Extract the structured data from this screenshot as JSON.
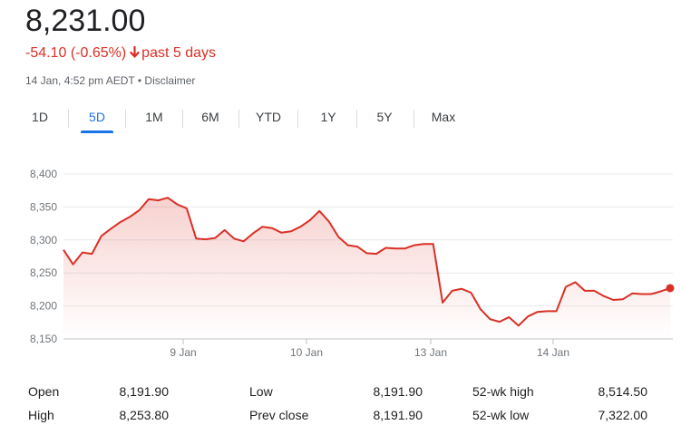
{
  "header": {
    "price": "8,231.00",
    "change": "-54.10 (-0.65%)",
    "period": "past 5 days",
    "timestamp": "14 Jan, 4:52 pm AEDT",
    "separator": "•",
    "disclaimer": "Disclaimer",
    "down_color": "#d93025"
  },
  "tabs": [
    {
      "label": "1D",
      "active": false
    },
    {
      "label": "5D",
      "active": true
    },
    {
      "label": "1M",
      "active": false
    },
    {
      "label": "6M",
      "active": false
    },
    {
      "label": "YTD",
      "active": false
    },
    {
      "label": "1Y",
      "active": false
    },
    {
      "label": "5Y",
      "active": false
    },
    {
      "label": "Max",
      "active": false
    }
  ],
  "chart_data": {
    "type": "area",
    "title": "",
    "xlabel": "",
    "ylabel": "",
    "ylim": [
      8150,
      8400
    ],
    "yticks": [
      8400,
      8350,
      8300,
      8250,
      8200,
      8150
    ],
    "ytick_labels": [
      "8,400",
      "8,350",
      "8,300",
      "8,250",
      "8,200",
      "8,150"
    ],
    "xtick_labels": [
      "9 Jan",
      "10 Jan",
      "13 Jan",
      "14 Jan"
    ],
    "line_color": "#d93025",
    "grid": true,
    "series": [
      {
        "values": [
          8285,
          8263,
          8281,
          8279,
          8306,
          8317,
          8327,
          8335,
          8345,
          8362,
          8360,
          8364,
          8354,
          8348,
          8302,
          8301,
          8303,
          8315,
          8302,
          8298,
          8310,
          8320,
          8318,
          8311,
          8313,
          8320,
          8330,
          8344,
          8328,
          8305,
          8292,
          8290,
          8280,
          8279,
          8288,
          8287,
          8287,
          8292,
          8294,
          8294,
          8205,
          8223,
          8226,
          8220,
          8195,
          8180,
          8176,
          8183,
          8170,
          8184,
          8191,
          8192,
          8192,
          8229,
          8236,
          8223,
          8223,
          8215,
          8209,
          8210,
          8219,
          8218,
          8218,
          8222,
          8227
        ]
      }
    ]
  },
  "stats": [
    {
      "label": "Open",
      "value": "8,191.90"
    },
    {
      "label": "High",
      "value": "8,253.80"
    },
    {
      "label": "Low",
      "value": "8,191.90"
    },
    {
      "label": "Prev close",
      "value": "8,191.90"
    },
    {
      "label": "52-wk high",
      "value": "8,514.50"
    },
    {
      "label": "52-wk low",
      "value": "7,322.00"
    }
  ]
}
